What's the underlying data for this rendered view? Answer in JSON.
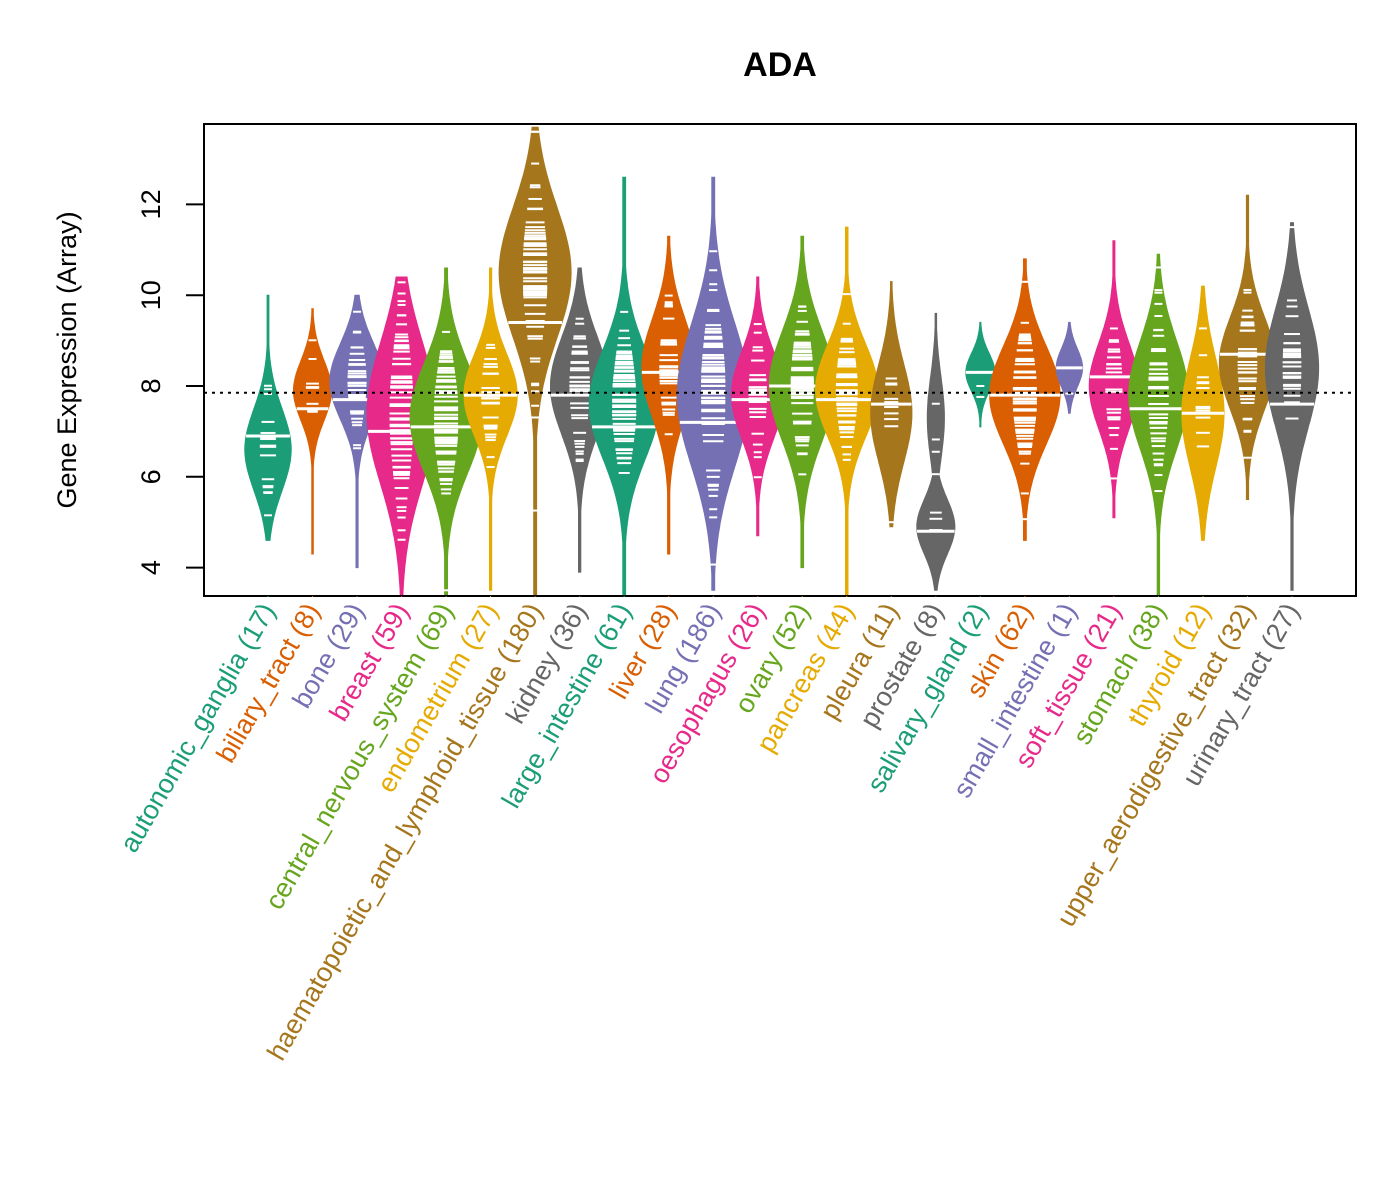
{
  "chart_data": {
    "type": "beanplot",
    "title": "ADA",
    "xlabel": "",
    "ylabel": "Gene Expression (Array)",
    "ylim": [
      3.4,
      13.8
    ],
    "yticks": [
      4,
      6,
      8,
      10,
      12
    ],
    "reference_line": 7.85,
    "grid": false,
    "palette": [
      "#1B9E77",
      "#D95F02",
      "#7570B3",
      "#E7298A",
      "#66A61E",
      "#E6AB02",
      "#A6761D",
      "#666666"
    ],
    "categories": [
      {
        "name": "autonomic_ganglia",
        "n": 17,
        "label": "autonomic_ganglia (17)",
        "color": "#1B9E77",
        "min": 4.6,
        "max": 10.0,
        "median": 6.9,
        "mode": 6.6,
        "spread": 0.75
      },
      {
        "name": "biliary_tract",
        "n": 8,
        "label": "biliary_tract (8)",
        "color": "#D95F02",
        "min": 4.3,
        "max": 9.7,
        "median": 7.5,
        "mode": 7.9,
        "spread": 0.55
      },
      {
        "name": "bone",
        "n": 29,
        "label": "bone (29)",
        "color": "#7570B3",
        "min": 4.0,
        "max": 10.0,
        "median": 7.7,
        "mode": 8.1,
        "spread": 0.7
      },
      {
        "name": "breast",
        "n": 59,
        "label": "breast (59)",
        "color": "#E7298A",
        "min": 3.4,
        "max": 10.4,
        "median": 7.0,
        "mode": 7.4,
        "spread": 1.3
      },
      {
        "name": "central_nervous_system",
        "n": 69,
        "label": "central_nervous_system (69)",
        "color": "#66A61E",
        "min": 3.4,
        "max": 10.6,
        "median": 7.1,
        "mode": 7.3,
        "spread": 1.0
      },
      {
        "name": "endometrium",
        "n": 27,
        "label": "endometrium (27)",
        "color": "#E6AB02",
        "min": 3.5,
        "max": 10.6,
        "median": 7.8,
        "mode": 7.8,
        "spread": 0.75
      },
      {
        "name": "haematopoietic_and_lymphoid_tissue",
        "n": 180,
        "label": "haematopoietic_and_lymphoid_tissue (180)",
        "color": "#A6761D",
        "min": 3.4,
        "max": 13.7,
        "median": 9.4,
        "mode": 10.5,
        "spread": 1.2
      },
      {
        "name": "kidney",
        "n": 36,
        "label": "kidney (36)",
        "color": "#666666",
        "min": 3.9,
        "max": 10.6,
        "median": 7.8,
        "mode": 8.0,
        "spread": 0.9
      },
      {
        "name": "large_intestine",
        "n": 61,
        "label": "large_intestine (61)",
        "color": "#1B9E77",
        "min": 3.4,
        "max": 12.6,
        "median": 7.1,
        "mode": 7.6,
        "spread": 1.0
      },
      {
        "name": "liver",
        "n": 28,
        "label": "liver (28)",
        "color": "#D95F02",
        "min": 4.3,
        "max": 11.3,
        "median": 8.3,
        "mode": 8.4,
        "spread": 0.9
      },
      {
        "name": "lung",
        "n": 186,
        "label": "lung (186)",
        "color": "#7570B3",
        "min": 3.5,
        "max": 12.6,
        "median": 7.2,
        "mode": 7.8,
        "spread": 1.3
      },
      {
        "name": "oesophagus",
        "n": 26,
        "label": "oesophagus (26)",
        "color": "#E7298A",
        "min": 4.7,
        "max": 10.4,
        "median": 7.7,
        "mode": 7.8,
        "spread": 0.8
      },
      {
        "name": "ovary",
        "n": 52,
        "label": "ovary (52)",
        "color": "#66A61E",
        "min": 4.0,
        "max": 11.3,
        "median": 8.0,
        "mode": 8.0,
        "spread": 1.0
      },
      {
        "name": "pancreas",
        "n": 44,
        "label": "pancreas (44)",
        "color": "#E6AB02",
        "min": 3.4,
        "max": 11.5,
        "median": 7.7,
        "mode": 7.9,
        "spread": 0.85
      },
      {
        "name": "pleura",
        "n": 11,
        "label": "pleura (11)",
        "color": "#A6761D",
        "min": 4.9,
        "max": 10.3,
        "median": 7.6,
        "mode": 7.4,
        "spread": 0.9
      },
      {
        "name": "prostate",
        "n": 8,
        "label": "prostate (8)",
        "color": "#666666",
        "min": 3.5,
        "max": 9.6,
        "median": 4.8,
        "mode": 4.9,
        "spread": 0.5
      },
      {
        "name": "salivary_gland",
        "n": 2,
        "label": "salivary_gland (2)",
        "color": "#1B9E77",
        "min": 7.1,
        "max": 9.4,
        "median": 8.3,
        "mode": 8.3,
        "spread": 0.35
      },
      {
        "name": "skin",
        "n": 62,
        "label": "skin (62)",
        "color": "#D95F02",
        "min": 4.6,
        "max": 10.8,
        "median": 7.8,
        "mode": 7.8,
        "spread": 0.9
      },
      {
        "name": "small_intestine",
        "n": 1,
        "label": "small_intestine (1)",
        "color": "#7570B3",
        "min": 7.4,
        "max": 9.4,
        "median": 8.4,
        "mode": 8.4,
        "spread": 0.35
      },
      {
        "name": "soft_tissue",
        "n": 21,
        "label": "soft_tissue (21)",
        "color": "#E7298A",
        "min": 5.1,
        "max": 11.2,
        "median": 8.2,
        "mode": 8.0,
        "spread": 0.8
      },
      {
        "name": "stomach",
        "n": 38,
        "label": "stomach (38)",
        "color": "#66A61E",
        "min": 3.4,
        "max": 10.9,
        "median": 7.5,
        "mode": 7.8,
        "spread": 1.0
      },
      {
        "name": "thyroid",
        "n": 12,
        "label": "thyroid (12)",
        "color": "#E6AB02",
        "min": 4.6,
        "max": 10.2,
        "median": 7.4,
        "mode": 7.4,
        "spread": 1.0
      },
      {
        "name": "upper_aerodigestive_tract",
        "n": 32,
        "label": "upper_aerodigestive_tract (32)",
        "color": "#A6761D",
        "min": 5.5,
        "max": 12.2,
        "median": 8.7,
        "mode": 8.5,
        "spread": 0.85
      },
      {
        "name": "urinary_tract",
        "n": 27,
        "label": "urinary_tract (27)",
        "color": "#666666",
        "min": 3.5,
        "max": 11.6,
        "median": 7.6,
        "mode": 8.4,
        "spread": 1.1
      }
    ]
  }
}
